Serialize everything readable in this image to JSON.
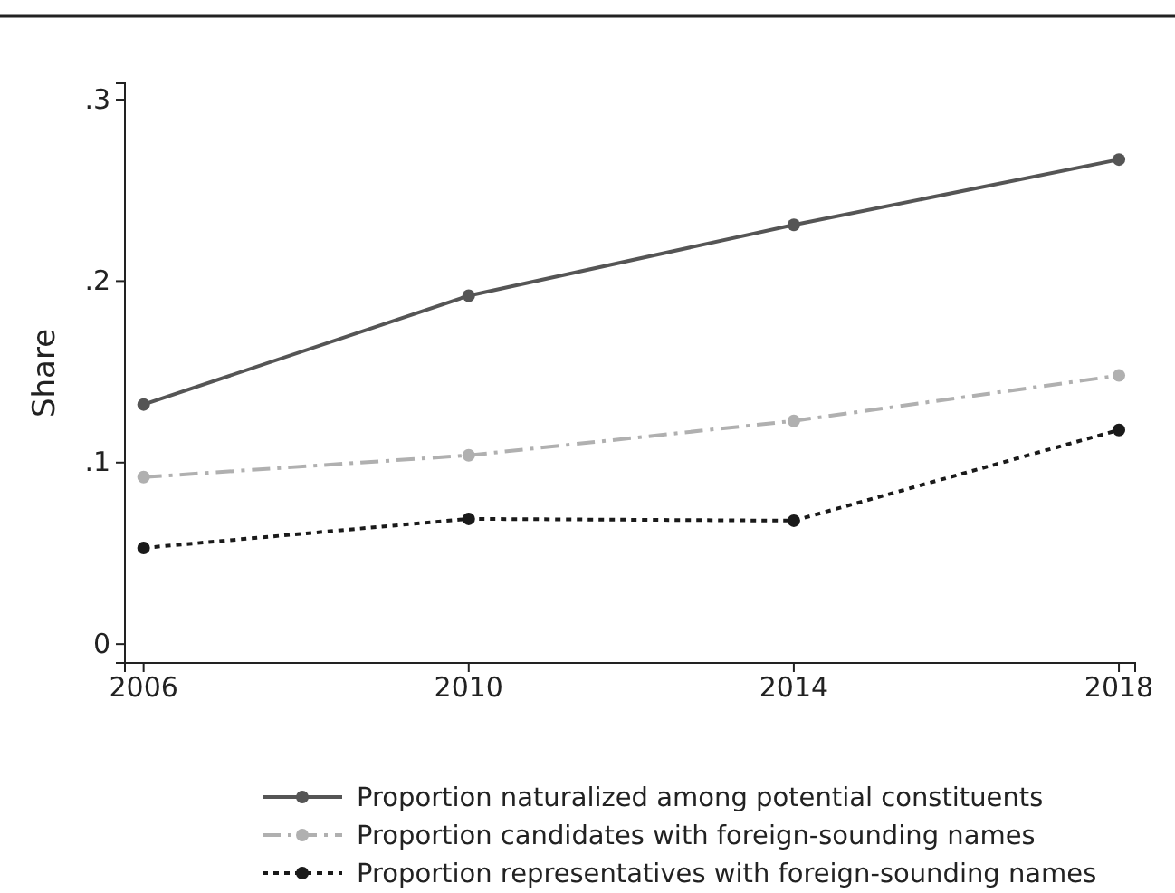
{
  "chart_data": {
    "type": "line",
    "ylabel": "Share",
    "x": [
      2006,
      2010,
      2014,
      2018
    ],
    "xlim": [
      2005.77,
      2018.2
    ],
    "xticks": [
      2006,
      2010,
      2014,
      2018
    ],
    "ylim": [
      -0.0104,
      0.309
    ],
    "yticks": [
      {
        "value": 0,
        "label": "0"
      },
      {
        "value": 0.1,
        "label": ".1"
      },
      {
        "value": 0.2,
        "label": ".2"
      },
      {
        "value": 0.3,
        "label": ".3"
      }
    ],
    "grid": false,
    "legend": "bottom",
    "marker": "circle",
    "series": [
      {
        "name": "Proportion naturalized among potential constituents",
        "color": "#555555",
        "line_style": "solid",
        "values": [
          0.132,
          0.192,
          0.231,
          0.267
        ]
      },
      {
        "name": "Proportion candidates with foreign-sounding names",
        "color": "#b0b0b0",
        "line_style": "dashed",
        "values": [
          0.092,
          0.104,
          0.123,
          0.148
        ]
      },
      {
        "name": "Proportion representatives with foreign-sounding names",
        "color": "#1a1a1a",
        "line_style": "dotted",
        "values": [
          0.053,
          0.069,
          0.068,
          0.118
        ]
      }
    ]
  }
}
